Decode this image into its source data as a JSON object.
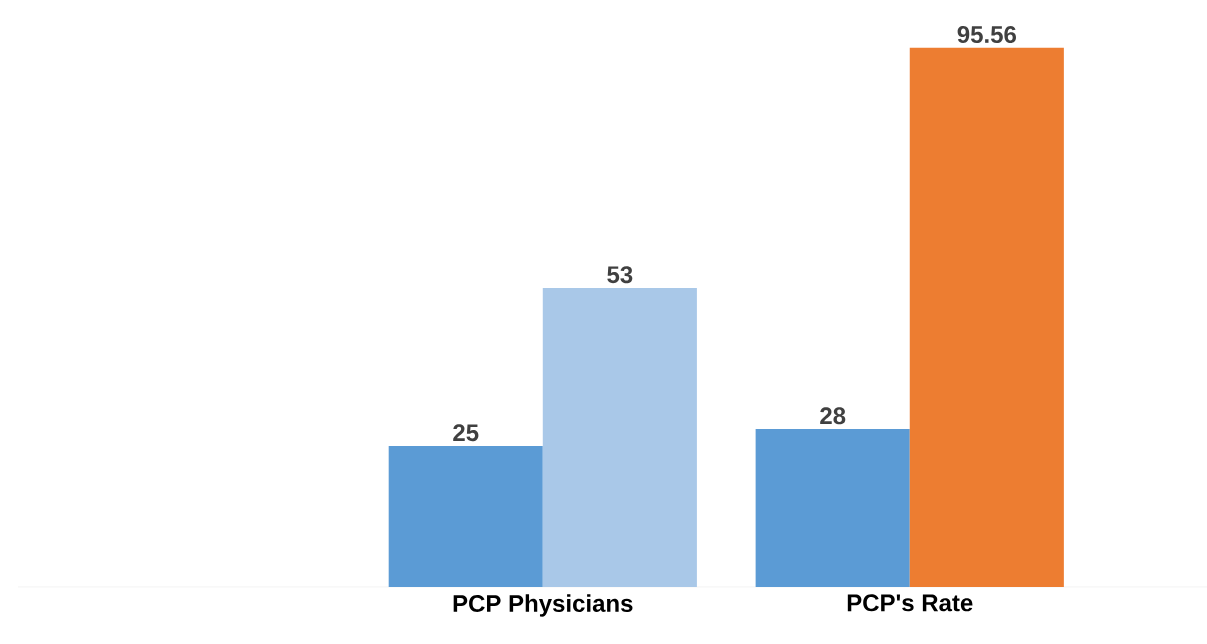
{
  "chart_data": {
    "type": "bar",
    "categories": [
      "PCP Physicians",
      "PCP's Rate"
    ],
    "series": [
      {
        "color": "#5b9bd5",
        "values": [
          25,
          28
        ]
      },
      {
        "colors": [
          "#a9c8e8",
          "#ed7d31"
        ],
        "values": [
          53,
          95.56
        ]
      }
    ],
    "data_labels": true,
    "tick_labels": "x"
  }
}
